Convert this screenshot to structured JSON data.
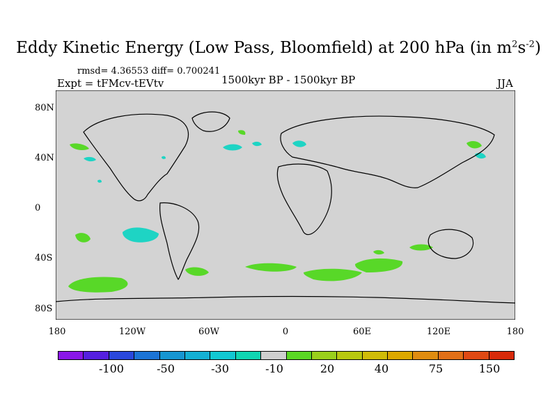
{
  "title": {
    "main": "Eddy Kinetic Energy (Low Pass, Bloomfield) at 200 hPa (in m",
    "sup1": "2",
    "mid": "s",
    "sup2": "-2",
    "end": ")"
  },
  "stats": "rmsd= 4.36553 diff= 0.700241",
  "expt": "Expt = tFMcv-tEVtv",
  "period": "1500kyr BP - 1500kyr BP",
  "season": "JJA",
  "map": {
    "ocean_color": "#d3d3d3",
    "latitude_labels": [
      "80N",
      "40N",
      "0",
      "40S",
      "80S"
    ],
    "longitude_labels": [
      "180",
      "120W",
      "60W",
      "0",
      "60E",
      "120E",
      "180"
    ]
  },
  "colorbar": {
    "colors": [
      "#8a16e8",
      "#5520e0",
      "#2a48dc",
      "#1c74d6",
      "#1796d2",
      "#14b0d4",
      "#12c8d2",
      "#10d6b2",
      "#cfcfcf",
      "#5ad824",
      "#9ad01c",
      "#b8c810",
      "#d0bc08",
      "#dca800",
      "#e08c10",
      "#e27018",
      "#e04a14",
      "#d82a0a"
    ],
    "labels": [
      "-100",
      "-50",
      "-30",
      "-10",
      "20",
      "40",
      "75",
      "150"
    ]
  },
  "anomaly_colors": {
    "positive": "#5ad824",
    "negative": "#12c8d2",
    "positive_fill": "#58d828",
    "negative_fill": "#1ed4c4"
  }
}
